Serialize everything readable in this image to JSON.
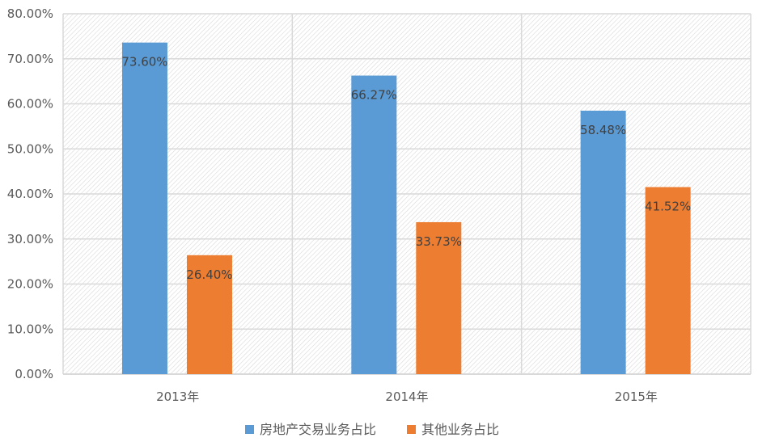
{
  "chart_data": {
    "type": "bar",
    "title": "",
    "xlabel": "",
    "ylabel": "",
    "categories": [
      "2013年",
      "2014年",
      "2015年"
    ],
    "series": [
      {
        "name": "房地产交易业务占比",
        "values": [
          73.6,
          66.27,
          58.48
        ],
        "labels": [
          "73.60%",
          "66.27%",
          "58.48%"
        ],
        "color": "#5B9BD5"
      },
      {
        "name": "其他业务占比",
        "values": [
          26.4,
          33.73,
          41.52
        ],
        "labels": [
          "26.40%",
          "33.73%",
          "41.52%"
        ],
        "color": "#ED7D31"
      }
    ],
    "ylim": [
      0,
      80
    ],
    "yticks": [
      "0.00%",
      "10.00%",
      "20.00%",
      "30.00%",
      "40.00%",
      "50.00%",
      "60.00%",
      "70.00%",
      "80.00%"
    ],
    "grid": true,
    "legend": "bottom",
    "background": "hatched"
  }
}
